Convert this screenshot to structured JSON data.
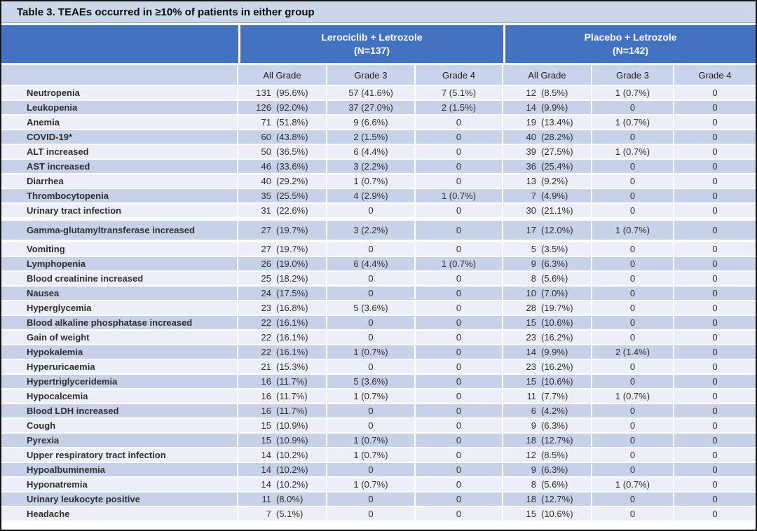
{
  "table": {
    "title": "Table 3. TEAEs occurred in ≥10% of patients in either group",
    "groups": [
      {
        "name": "Lerociclib + Letrozole",
        "n_label": "(N=137)"
      },
      {
        "name": "Placebo + Letrozole",
        "n_label": "(N=142)"
      }
    ],
    "grade_columns": [
      "All Grade",
      "Grade 3",
      "Grade 4",
      "All Grade",
      "Grade 3",
      "Grade 4"
    ],
    "rows": [
      {
        "label": "Neutropenia",
        "cells": [
          "131 (95.6%)",
          "57 (41.6%)",
          "7 (5.1%)",
          "12 (8.5%)",
          "1 (0.7%)",
          "0"
        ]
      },
      {
        "label": "Leukopenia",
        "cells": [
          "126 (92.0%)",
          "37 (27.0%)",
          "2 (1.5%)",
          "14 (9.9%)",
          "0",
          "0"
        ]
      },
      {
        "label": "Anemia",
        "cells": [
          "71 (51.8%)",
          "9 (6.6%)",
          "0",
          "19 (13.4%)",
          "1 (0.7%)",
          "0"
        ]
      },
      {
        "label": "COVID-19*",
        "cells": [
          "60 (43.8%)",
          "2 (1.5%)",
          "0",
          "40 (28.2%)",
          "0",
          "0"
        ]
      },
      {
        "label": "ALT increased",
        "cells": [
          "50 (36.5%)",
          "6 (4.4%)",
          "0",
          "39 (27.5%)",
          "1 (0.7%)",
          "0"
        ]
      },
      {
        "label": "AST increased",
        "cells": [
          "46 (33.6%)",
          "3 (2.2%)",
          "0",
          "36 (25.4%)",
          "0",
          "0"
        ]
      },
      {
        "label": "Diarrhea",
        "cells": [
          "40 (29.2%)",
          "1 (0.7%)",
          "0",
          "13 (9.2%)",
          "0",
          "0"
        ]
      },
      {
        "label": "Thrombocytopenia",
        "cells": [
          "35 (25.5%)",
          "4 (2.9%)",
          "1 (0.7%)",
          "7 (4.9%)",
          "0",
          "0"
        ]
      },
      {
        "label": "Urinary tract infection",
        "cells": [
          "31 (22.6%)",
          "0",
          "0",
          "30 (21.1%)",
          "0",
          "0"
        ]
      },
      {
        "label": "Gamma-glutamyltransferase increased",
        "tall": true,
        "cells": [
          "27 (19.7%)",
          "3 (2.2%)",
          "0",
          "17 (12.0%)",
          "1 (0.7%)",
          "0"
        ]
      },
      {
        "label": "Vomiting",
        "cells": [
          "27 (19.7%)",
          "0",
          "0",
          "5 (3.5%)",
          "0",
          "0"
        ]
      },
      {
        "label": "Lymphopenia",
        "cells": [
          "26 (19.0%)",
          "6 (4.4%)",
          "1 (0.7%)",
          "9 (6.3%)",
          "0",
          "0"
        ]
      },
      {
        "label": "Blood creatinine increased",
        "cells": [
          "25 (18.2%)",
          "0",
          "0",
          "8 (5.6%)",
          "0",
          "0"
        ]
      },
      {
        "label": "Nausea",
        "cells": [
          "24 (17.5%)",
          "0",
          "0",
          "10 (7.0%)",
          "0",
          "0"
        ]
      },
      {
        "label": "Hyperglycemia",
        "cells": [
          "23 (16.8%)",
          "5 (3.6%)",
          "0",
          "28 (19.7%)",
          "0",
          "0"
        ]
      },
      {
        "label": "Blood alkaline phosphatase increased",
        "cells": [
          "22 (16.1%)",
          "0",
          "0",
          "15 (10.6%)",
          "0",
          "0"
        ]
      },
      {
        "label": "Gain of weight",
        "cells": [
          "22 (16.1%)",
          "0",
          "0",
          "23 (16.2%)",
          "0",
          "0"
        ]
      },
      {
        "label": "Hypokalemia",
        "cells": [
          "22 (16.1%)",
          "1 (0.7%)",
          "0",
          "14 (9.9%)",
          "2 (1.4%)",
          "0"
        ]
      },
      {
        "label": "Hyperuricaemia",
        "cells": [
          "21 (15.3%)",
          "0",
          "0",
          "23 (16.2%)",
          "0",
          "0"
        ]
      },
      {
        "label": "Hypertriglyceridemia",
        "cells": [
          "16 (11.7%)",
          "5 (3.6%)",
          "0",
          "15 (10.6%)",
          "0",
          "0"
        ]
      },
      {
        "label": "Hypocalcemia",
        "cells": [
          "16 (11.7%)",
          "1 (0.7%)",
          "0",
          "11 (7.7%)",
          "1 (0.7%)",
          "0"
        ]
      },
      {
        "label": "Blood LDH increased",
        "cells": [
          "16 (11.7%)",
          "0",
          "0",
          "6 (4.2%)",
          "0",
          "0"
        ]
      },
      {
        "label": "Cough",
        "cells": [
          "15 (10.9%)",
          "0",
          "0",
          "9 (6.3%)",
          "0",
          "0"
        ]
      },
      {
        "label": "Pyrexia",
        "cells": [
          "15 (10.9%)",
          "1 (0.7%)",
          "0",
          "18 (12.7%)",
          "0",
          "0"
        ]
      },
      {
        "label": "Upper respiratory tract infection",
        "cells": [
          "14 (10.2%)",
          "1 (0.7%)",
          "0",
          "12 (8.5%)",
          "0",
          "0"
        ]
      },
      {
        "label": "Hypoalbuminemia",
        "cells": [
          "14 (10.2%)",
          "0",
          "0",
          "9 (6.3%)",
          "0",
          "0"
        ]
      },
      {
        "label": "Hyponatremia",
        "cells": [
          "14 (10.2%)",
          "1 (0.7%)",
          "0",
          "8 (5.6%)",
          "1 (0.7%)",
          "0"
        ]
      },
      {
        "label": "Urinary leukocyte positive",
        "cells": [
          "11 (8.0%)",
          "0",
          "0",
          "18 (12.7%)",
          "0",
          "0"
        ]
      },
      {
        "label": "Headache",
        "cells": [
          "7 (5.1%)",
          "0",
          "0",
          "15 (10.6%)",
          "0",
          "0"
        ]
      }
    ]
  },
  "colors": {
    "accent_blue": "#4372c0",
    "title_bar_bg": "#ccd7ea",
    "subheader_bg": "#c9d3ea",
    "row_light": "#eceff7",
    "row_dark": "#c7d1e8",
    "border_dark": "#141414",
    "separator_white": "#ffffff"
  }
}
